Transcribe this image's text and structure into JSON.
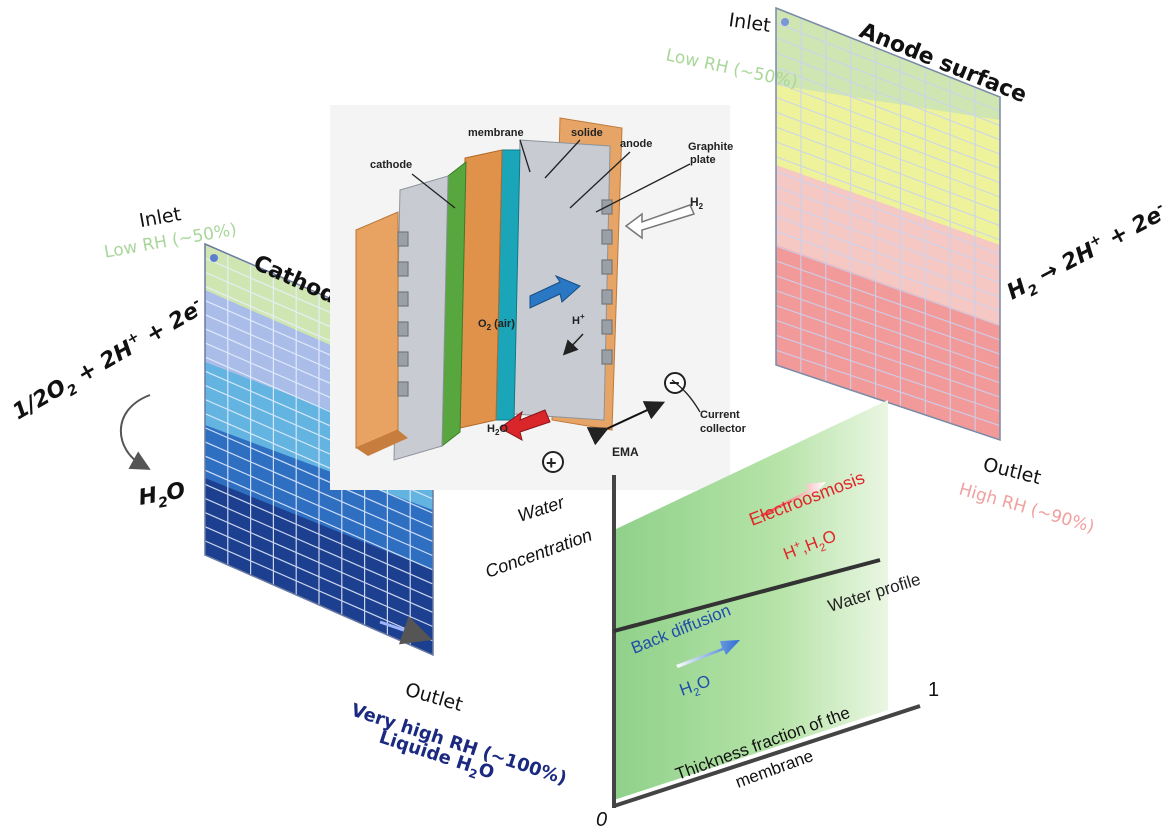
{
  "cathode_panel": {
    "inlet": "Inlet",
    "inlet_rh": "Low RH (~50%)",
    "title": "Cathode surface",
    "outlet": "Outlet",
    "outlet_rh": "Very high RH (~100%)",
    "outlet_liquid": "Liquide H",
    "outlet_liquid_sub": "2",
    "outlet_liquid_end": "O",
    "colors": [
      "#cfe6b2",
      "#a9bde8",
      "#63b4e0",
      "#2e6fc2",
      "#1d3f8f"
    ]
  },
  "cathode_reaction": {
    "left": "1/2O",
    "left_sub": "2",
    "rest": " + 2H",
    "rest_sup": "+",
    "end": " + 2e",
    "end_sup": "-",
    "product": "H",
    "product_sub": "2",
    "product_end": "O"
  },
  "anode_panel": {
    "inlet": "Inlet",
    "inlet_rh": "Low RH (~50%)",
    "title": "Anode surface",
    "outlet": "Outlet",
    "outlet_rh": "High RH (~90%)",
    "colors": [
      "#cfe6b2",
      "#eef29a",
      "#f5c8c4",
      "#f29a9a"
    ]
  },
  "anode_reaction": {
    "left": "H",
    "left_sub": "2",
    "arrow": " → 2H",
    "sup": "+",
    "end": " + 2e",
    "end_sup": "-"
  },
  "cell": {
    "membrane": "membrane",
    "solide": "solide",
    "anode": "anode",
    "graphite": "Graphite",
    "graphite2": "plate",
    "cathode": "cathode",
    "h2": "H",
    "h2_sub": "2",
    "o2": "O",
    "o2_sub": "2",
    "o2_end": " (air)",
    "hplus": "H",
    "hplus_sup": "+",
    "h2o": "H",
    "h2o_sub": "2",
    "h2o_end": "O",
    "ema": "EMA",
    "current": "Current",
    "collector": "collector",
    "plus": "+",
    "minus": "−"
  },
  "graph": {
    "ylabel1": "Water",
    "ylabel2": "Concentration",
    "electroosmosis": "Electroosmosis",
    "eo_species": "H",
    "eo_sup": "+",
    "eo_rest": ",H",
    "eo_sub": "2",
    "eo_end": "O",
    "water_profile": "Water profile",
    "back_diffusion": "Back diffusion",
    "bd_species": "H",
    "bd_sub": "2",
    "bd_end": "O",
    "xlabel1": "Thickness fraction of the",
    "xlabel2": "membrane",
    "tick0": "0",
    "tick1": "1"
  }
}
